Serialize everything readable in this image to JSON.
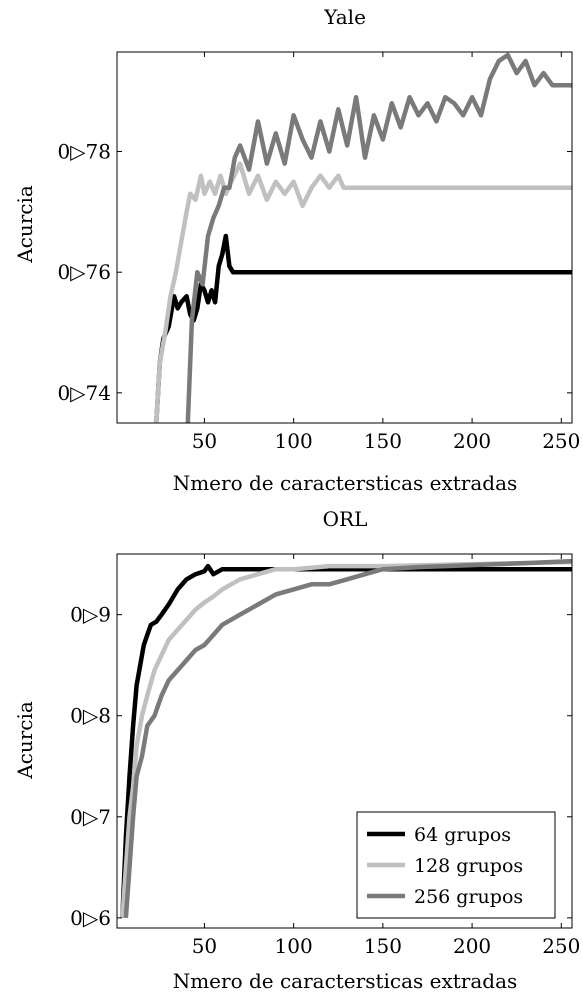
{
  "chart_data": [
    {
      "type": "line",
      "title": "Yale",
      "xlabel": "Nmero de caractersticas extradas",
      "ylabel": "Acurcia",
      "xlim": [
        1,
        256
      ],
      "ylim": [
        0.735,
        0.7965
      ],
      "x_ticks": [
        50,
        100,
        150,
        200,
        250
      ],
      "y_ticks": [
        0.74,
        0.76,
        0.78
      ],
      "y_tick_labels": [
        "0▷74",
        "0▷76",
        "0▷78"
      ],
      "legend": "none",
      "grid": false,
      "series": [
        {
          "color": "#000000",
          "x": [
            22,
            25,
            27,
            30,
            33,
            35,
            37,
            40,
            42,
            44,
            46,
            48,
            50,
            52,
            54,
            56,
            58,
            60,
            62,
            64,
            66,
            256
          ],
          "y": [
            0.73,
            0.745,
            0.749,
            0.751,
            0.756,
            0.754,
            0.755,
            0.756,
            0.753,
            0.752,
            0.754,
            0.758,
            0.757,
            0.755,
            0.757,
            0.755,
            0.761,
            0.763,
            0.766,
            0.761,
            0.76,
            0.76
          ]
        },
        {
          "color": "#c0c0c0",
          "x": [
            22,
            25,
            28,
            31,
            34,
            37,
            40,
            42,
            45,
            48,
            50,
            53,
            56,
            59,
            62,
            65,
            70,
            75,
            80,
            85,
            90,
            95,
            100,
            105,
            110,
            115,
            120,
            125,
            128,
            256
          ],
          "y": [
            0.73,
            0.745,
            0.75,
            0.756,
            0.76,
            0.765,
            0.77,
            0.773,
            0.772,
            0.776,
            0.773,
            0.775,
            0.773,
            0.776,
            0.773,
            0.775,
            0.778,
            0.773,
            0.776,
            0.772,
            0.775,
            0.773,
            0.775,
            0.771,
            0.774,
            0.776,
            0.774,
            0.776,
            0.774,
            0.774
          ]
        },
        {
          "color": "#7a7a7a",
          "x": [
            40,
            43,
            46,
            49,
            52,
            55,
            58,
            61,
            64,
            67,
            70,
            75,
            80,
            85,
            90,
            95,
            100,
            105,
            110,
            115,
            120,
            125,
            130,
            135,
            140,
            145,
            150,
            155,
            160,
            165,
            170,
            175,
            180,
            185,
            190,
            195,
            200,
            205,
            210,
            215,
            220,
            225,
            230,
            235,
            240,
            245,
            256
          ],
          "y": [
            0.73,
            0.752,
            0.76,
            0.758,
            0.766,
            0.769,
            0.771,
            0.774,
            0.774,
            0.779,
            0.781,
            0.777,
            0.785,
            0.778,
            0.783,
            0.778,
            0.786,
            0.782,
            0.779,
            0.785,
            0.78,
            0.787,
            0.781,
            0.789,
            0.779,
            0.786,
            0.782,
            0.788,
            0.784,
            0.789,
            0.786,
            0.788,
            0.785,
            0.789,
            0.788,
            0.786,
            0.789,
            0.786,
            0.792,
            0.795,
            0.796,
            0.793,
            0.795,
            0.791,
            0.793,
            0.791,
            0.791
          ]
        }
      ]
    },
    {
      "type": "line",
      "title": "ORL",
      "xlabel": "Nmero de caractersticas extradas",
      "ylabel": "Acurcia",
      "xlim": [
        1,
        256
      ],
      "ylim": [
        0.59,
        0.96
      ],
      "x_ticks": [
        50,
        100,
        150,
        200,
        250
      ],
      "y_ticks": [
        0.6,
        0.7,
        0.8,
        0.9
      ],
      "y_tick_labels": [
        "0▷6",
        "0▷7",
        "0▷8",
        "0▷9"
      ],
      "legend": "bottom-right",
      "grid": false,
      "series": [
        {
          "name": "64 grupos",
          "color": "#000000",
          "x": [
            4,
            6,
            8,
            10,
            12,
            14,
            16,
            18,
            20,
            23,
            26,
            30,
            35,
            40,
            45,
            50,
            52,
            55,
            60,
            70,
            80,
            100,
            150,
            200,
            256
          ],
          "y": [
            0.6,
            0.68,
            0.74,
            0.79,
            0.83,
            0.85,
            0.87,
            0.88,
            0.89,
            0.893,
            0.9,
            0.91,
            0.925,
            0.935,
            0.94,
            0.943,
            0.948,
            0.94,
            0.945,
            0.945,
            0.945,
            0.945,
            0.945,
            0.945,
            0.945
          ]
        },
        {
          "name": "128 grupos",
          "color": "#c0c0c0",
          "x": [
            4,
            6,
            8,
            10,
            12,
            15,
            18,
            22,
            26,
            30,
            35,
            40,
            45,
            50,
            55,
            60,
            65,
            70,
            80,
            90,
            100,
            120,
            150,
            200,
            256
          ],
          "y": [
            0.6,
            0.65,
            0.7,
            0.73,
            0.77,
            0.8,
            0.82,
            0.845,
            0.86,
            0.875,
            0.885,
            0.895,
            0.905,
            0.912,
            0.918,
            0.925,
            0.93,
            0.935,
            0.94,
            0.945,
            0.945,
            0.948,
            0.948,
            0.95,
            0.952
          ]
        },
        {
          "name": "256 grupos",
          "color": "#7a7a7a",
          "x": [
            6,
            8,
            10,
            12,
            15,
            18,
            22,
            26,
            30,
            35,
            40,
            45,
            50,
            55,
            60,
            65,
            70,
            80,
            90,
            100,
            110,
            120,
            130,
            140,
            150,
            170,
            200,
            230,
            256
          ],
          "y": [
            0.6,
            0.65,
            0.7,
            0.74,
            0.76,
            0.79,
            0.8,
            0.82,
            0.835,
            0.845,
            0.855,
            0.865,
            0.87,
            0.88,
            0.89,
            0.895,
            0.9,
            0.91,
            0.92,
            0.925,
            0.93,
            0.93,
            0.935,
            0.94,
            0.945,
            0.947,
            0.949,
            0.951,
            0.953
          ]
        }
      ]
    }
  ]
}
